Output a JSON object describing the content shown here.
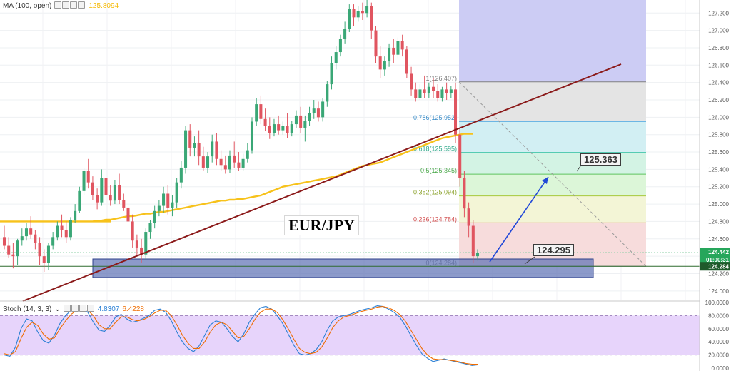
{
  "main_indicator": {
    "name": "MA (100, open)",
    "value": "125.8094"
  },
  "stoch_indicator": {
    "name": "Stoch (14, 3, 3)",
    "k_value": "4.8307",
    "d_value": "6.4228"
  },
  "pair_label": "EUR/JPY",
  "callouts": {
    "target": "125.363",
    "support": "124.295"
  },
  "colors": {
    "bull": "#3aa776",
    "bear": "#e05560",
    "ma": "#f7c21b",
    "trendline": "#8b1a1a",
    "arrow": "#2148d8",
    "stoch_k": "#2a7fd4",
    "stoch_d": "#ef6c00",
    "stoch_band": "#e7d4fb",
    "support_box": "#5b6fb3"
  },
  "chart_data": [
    {
      "type": "candlestick",
      "pair": "EUR/JPY",
      "ylim": [
        123.9,
        127.35
      ],
      "y_ticks": [
        "124.000",
        "124.200",
        "124.400",
        "124.600",
        "124.800",
        "125.000",
        "125.200",
        "125.400",
        "125.600",
        "125.800",
        "126.000",
        "126.200",
        "126.400",
        "126.600",
        "126.800",
        "127.000",
        "127.200"
      ],
      "price_labels": {
        "current": "124.442",
        "countdown": "01:00:31",
        "level": "124.284"
      },
      "horizontal_level": 124.284,
      "fibonacci": {
        "high": 126.407,
        "low": 124.284,
        "levels": [
          {
            "ratio": "1",
            "value": 126.407,
            "label": "1(126.407)"
          },
          {
            "ratio": "0.786",
            "value": 125.952,
            "label": "0.786(125.952)"
          },
          {
            "ratio": "0.618",
            "value": 125.595,
            "label": "0.618(125.595)"
          },
          {
            "ratio": "0.5",
            "value": 125.345,
            "label": "0.5(125.345)"
          },
          {
            "ratio": "0.382",
            "value": 125.094,
            "label": "0.382(125.094)"
          },
          {
            "ratio": "0.236",
            "value": 124.784,
            "label": "0.236(124.784)"
          },
          {
            "ratio": "0",
            "value": 124.284,
            "label": "0(124.284)"
          }
        ]
      },
      "candles": [
        {
          "o": 124.62,
          "h": 124.75,
          "c": 124.52,
          "l": 124.48
        },
        {
          "o": 124.52,
          "h": 124.62,
          "c": 124.42,
          "l": 124.38
        },
        {
          "o": 124.42,
          "h": 124.55,
          "c": 124.4,
          "l": 124.26
        },
        {
          "o": 124.4,
          "h": 124.6,
          "c": 124.58,
          "l": 124.3
        },
        {
          "o": 124.58,
          "h": 124.72,
          "c": 124.63,
          "l": 124.52
        },
        {
          "o": 124.63,
          "h": 124.78,
          "c": 124.72,
          "l": 124.58
        },
        {
          "o": 124.72,
          "h": 124.86,
          "c": 124.65,
          "l": 124.6
        },
        {
          "o": 124.65,
          "h": 124.7,
          "c": 124.55,
          "l": 124.48
        },
        {
          "o": 124.55,
          "h": 124.62,
          "c": 124.4,
          "l": 124.3
        },
        {
          "o": 124.4,
          "h": 124.48,
          "c": 124.32,
          "l": 124.22
        },
        {
          "o": 124.32,
          "h": 124.55,
          "c": 124.52,
          "l": 124.24
        },
        {
          "o": 124.52,
          "h": 124.68,
          "c": 124.62,
          "l": 124.48
        },
        {
          "o": 124.62,
          "h": 124.8,
          "c": 124.75,
          "l": 124.58
        },
        {
          "o": 124.75,
          "h": 124.88,
          "c": 124.7,
          "l": 124.62
        },
        {
          "o": 124.7,
          "h": 124.8,
          "c": 124.62,
          "l": 124.55
        },
        {
          "o": 124.62,
          "h": 124.85,
          "c": 124.82,
          "l": 124.58
        },
        {
          "o": 124.82,
          "h": 125.0,
          "c": 124.92,
          "l": 124.78
        },
        {
          "o": 124.92,
          "h": 125.2,
          "c": 125.15,
          "l": 124.9
        },
        {
          "o": 125.15,
          "h": 125.42,
          "c": 125.38,
          "l": 125.1
        },
        {
          "o": 125.38,
          "h": 125.52,
          "c": 125.25,
          "l": 125.18
        },
        {
          "o": 125.25,
          "h": 125.32,
          "c": 125.1,
          "l": 125.05
        },
        {
          "o": 125.1,
          "h": 125.18,
          "c": 125.02,
          "l": 124.94
        },
        {
          "o": 125.02,
          "h": 125.4,
          "c": 125.3,
          "l": 124.98
        },
        {
          "o": 125.3,
          "h": 125.42,
          "c": 125.1,
          "l": 125.05
        },
        {
          "o": 125.1,
          "h": 125.22,
          "c": 125.04,
          "l": 124.98
        },
        {
          "o": 125.04,
          "h": 125.28,
          "c": 125.22,
          "l": 125.0
        },
        {
          "o": 125.22,
          "h": 125.35,
          "c": 125.05,
          "l": 125.0
        },
        {
          "o": 125.05,
          "h": 125.12,
          "c": 124.96,
          "l": 124.92
        },
        {
          "o": 124.96,
          "h": 125.0,
          "c": 124.8,
          "l": 124.7
        },
        {
          "o": 124.8,
          "h": 124.88,
          "c": 124.58,
          "l": 124.5
        },
        {
          "o": 124.58,
          "h": 124.65,
          "c": 124.5,
          "l": 124.4
        },
        {
          "o": 124.5,
          "h": 124.6,
          "c": 124.42,
          "l": 124.32
        },
        {
          "o": 124.42,
          "h": 124.72,
          "c": 124.68,
          "l": 124.36
        },
        {
          "o": 124.68,
          "h": 124.82,
          "c": 124.78,
          "l": 124.6
        },
        {
          "o": 124.78,
          "h": 124.98,
          "c": 124.92,
          "l": 124.72
        },
        {
          "o": 124.92,
          "h": 125.05,
          "c": 124.98,
          "l": 124.86
        },
        {
          "o": 124.98,
          "h": 125.2,
          "c": 125.12,
          "l": 124.9
        },
        {
          "o": 125.12,
          "h": 125.22,
          "c": 124.96,
          "l": 124.88
        },
        {
          "o": 124.96,
          "h": 125.1,
          "c": 125.02,
          "l": 124.86
        },
        {
          "o": 125.02,
          "h": 125.3,
          "c": 125.25,
          "l": 124.96
        },
        {
          "o": 125.25,
          "h": 125.5,
          "c": 125.42,
          "l": 125.18
        },
        {
          "o": 125.42,
          "h": 125.9,
          "c": 125.85,
          "l": 125.35
        },
        {
          "o": 125.85,
          "h": 125.92,
          "c": 125.65,
          "l": 125.55
        },
        {
          "o": 125.65,
          "h": 125.78,
          "c": 125.7,
          "l": 125.55
        },
        {
          "o": 125.7,
          "h": 125.85,
          "c": 125.55,
          "l": 125.45
        },
        {
          "o": 125.55,
          "h": 125.66,
          "c": 125.42,
          "l": 125.38
        },
        {
          "o": 125.42,
          "h": 125.6,
          "c": 125.55,
          "l": 125.36
        },
        {
          "o": 125.55,
          "h": 125.8,
          "c": 125.72,
          "l": 125.48
        },
        {
          "o": 125.72,
          "h": 125.82,
          "c": 125.52,
          "l": 125.45
        },
        {
          "o": 125.52,
          "h": 125.62,
          "c": 125.45,
          "l": 125.38
        },
        {
          "o": 125.45,
          "h": 125.56,
          "c": 125.4,
          "l": 125.35
        },
        {
          "o": 125.4,
          "h": 125.62,
          "c": 125.56,
          "l": 125.36
        },
        {
          "o": 125.56,
          "h": 125.72,
          "c": 125.48,
          "l": 125.42
        },
        {
          "o": 125.48,
          "h": 125.6,
          "c": 125.42,
          "l": 125.38
        },
        {
          "o": 125.42,
          "h": 125.58,
          "c": 125.52,
          "l": 125.38
        },
        {
          "o": 125.52,
          "h": 125.7,
          "c": 125.62,
          "l": 125.48
        },
        {
          "o": 125.62,
          "h": 126.0,
          "c": 125.95,
          "l": 125.58
        },
        {
          "o": 125.95,
          "h": 126.22,
          "c": 126.15,
          "l": 125.9
        },
        {
          "o": 126.15,
          "h": 126.25,
          "c": 125.98,
          "l": 125.92
        },
        {
          "o": 125.98,
          "h": 126.1,
          "c": 125.9,
          "l": 125.84
        },
        {
          "o": 125.9,
          "h": 126.0,
          "c": 125.82,
          "l": 125.75
        },
        {
          "o": 125.82,
          "h": 125.98,
          "c": 125.92,
          "l": 125.78
        },
        {
          "o": 125.92,
          "h": 126.02,
          "c": 125.85,
          "l": 125.8
        },
        {
          "o": 125.85,
          "h": 125.95,
          "c": 125.9,
          "l": 125.8
        },
        {
          "o": 125.9,
          "h": 126.05,
          "c": 125.82,
          "l": 125.76
        },
        {
          "o": 125.82,
          "h": 125.96,
          "c": 125.92,
          "l": 125.78
        },
        {
          "o": 125.92,
          "h": 126.08,
          "c": 126.02,
          "l": 125.88
        },
        {
          "o": 126.02,
          "h": 126.12,
          "c": 125.88,
          "l": 125.82
        },
        {
          "o": 125.88,
          "h": 126.02,
          "c": 125.96,
          "l": 125.72
        },
        {
          "o": 125.96,
          "h": 126.12,
          "c": 126.05,
          "l": 125.9
        },
        {
          "o": 126.05,
          "h": 126.2,
          "c": 126.1,
          "l": 125.98
        },
        {
          "o": 126.1,
          "h": 126.18,
          "c": 126.0,
          "l": 125.95
        },
        {
          "o": 126.0,
          "h": 126.22,
          "c": 126.18,
          "l": 125.95
        },
        {
          "o": 126.18,
          "h": 126.42,
          "c": 126.38,
          "l": 126.12
        },
        {
          "o": 126.38,
          "h": 126.7,
          "c": 126.62,
          "l": 126.32
        },
        {
          "o": 126.62,
          "h": 126.82,
          "c": 126.75,
          "l": 126.55
        },
        {
          "o": 126.75,
          "h": 126.95,
          "c": 126.9,
          "l": 126.7
        },
        {
          "o": 126.9,
          "h": 127.1,
          "c": 127.02,
          "l": 126.85
        },
        {
          "o": 127.02,
          "h": 127.3,
          "c": 127.25,
          "l": 126.98
        },
        {
          "o": 127.25,
          "h": 127.3,
          "c": 127.15,
          "l": 127.05
        },
        {
          "o": 127.15,
          "h": 127.28,
          "c": 127.22,
          "l": 127.1
        },
        {
          "o": 127.22,
          "h": 127.32,
          "c": 127.2,
          "l": 127.12
        },
        {
          "o": 127.2,
          "h": 127.35,
          "c": 127.28,
          "l": 127.15
        },
        {
          "o": 127.28,
          "h": 127.32,
          "c": 127.0,
          "l": 126.9
        },
        {
          "o": 127.0,
          "h": 127.05,
          "c": 126.7,
          "l": 126.62
        },
        {
          "o": 126.7,
          "h": 126.82,
          "c": 126.55,
          "l": 126.45
        },
        {
          "o": 126.55,
          "h": 126.7,
          "c": 126.65,
          "l": 126.48
        },
        {
          "o": 126.65,
          "h": 126.85,
          "c": 126.8,
          "l": 126.58
        },
        {
          "o": 126.8,
          "h": 126.9,
          "c": 126.72,
          "l": 126.62
        },
        {
          "o": 126.72,
          "h": 126.92,
          "c": 126.88,
          "l": 126.68
        },
        {
          "o": 126.88,
          "h": 126.95,
          "c": 126.78,
          "l": 126.7
        },
        {
          "o": 126.78,
          "h": 126.82,
          "c": 126.5,
          "l": 126.45
        },
        {
          "o": 126.5,
          "h": 126.58,
          "c": 126.32,
          "l": 126.25
        },
        {
          "o": 126.32,
          "h": 126.4,
          "c": 126.22,
          "l": 126.18
        },
        {
          "o": 126.22,
          "h": 126.38,
          "c": 126.32,
          "l": 126.2
        },
        {
          "o": 126.32,
          "h": 126.48,
          "c": 126.28,
          "l": 126.22
        },
        {
          "o": 126.28,
          "h": 126.4,
          "c": 126.35,
          "l": 126.22
        },
        {
          "o": 126.35,
          "h": 126.45,
          "c": 126.3,
          "l": 126.22
        },
        {
          "o": 126.3,
          "h": 126.38,
          "c": 126.22,
          "l": 126.18
        },
        {
          "o": 126.22,
          "h": 126.35,
          "c": 126.32,
          "l": 126.18
        },
        {
          "o": 126.32,
          "h": 126.4,
          "c": 126.28,
          "l": 126.2
        },
        {
          "o": 126.28,
          "h": 126.36,
          "c": 126.32,
          "l": 126.22
        },
        {
          "o": 126.32,
          "h": 126.4,
          "c": 125.8,
          "l": 125.7
        },
        {
          "o": 125.8,
          "h": 125.88,
          "c": 125.3,
          "l": 125.2
        },
        {
          "o": 125.3,
          "h": 125.38,
          "c": 124.95,
          "l": 124.85
        },
        {
          "o": 124.95,
          "h": 125.02,
          "c": 124.75,
          "l": 124.62
        },
        {
          "o": 124.75,
          "h": 124.82,
          "c": 124.4,
          "l": 124.32
        },
        {
          "o": 124.4,
          "h": 124.48,
          "c": 124.44,
          "l": 124.35
        }
      ],
      "ma_100": [
        124.8,
        124.81,
        124.81,
        124.82,
        124.82,
        124.83,
        124.84,
        124.85,
        124.86,
        124.86,
        124.87,
        124.88,
        124.89,
        124.89,
        124.9,
        124.91,
        124.91,
        124.92,
        124.93,
        124.94,
        124.95,
        124.96,
        124.97,
        124.98,
        124.99,
        125.0,
        125.01,
        125.02,
        125.03,
        125.04,
        125.04,
        125.05,
        125.05,
        125.06,
        125.06,
        125.07,
        125.08,
        125.09,
        125.1,
        125.12,
        125.14,
        125.16,
        125.18,
        125.2,
        125.21,
        125.22,
        125.23,
        125.24,
        125.25,
        125.26,
        125.27,
        125.28,
        125.29,
        125.3,
        125.31,
        125.32,
        125.34,
        125.36,
        125.38,
        125.4,
        125.42,
        125.44,
        125.45,
        125.46,
        125.47,
        125.48,
        125.5,
        125.52,
        125.54,
        125.56,
        125.58,
        125.6,
        125.62,
        125.64,
        125.66,
        125.68,
        125.7,
        125.72,
        125.74,
        125.76,
        125.77,
        125.78,
        125.79,
        125.8,
        125.81,
        125.81,
        125.81
      ],
      "ma_start_index": 20
    },
    {
      "type": "line",
      "title": "Stoch (14, 3, 3)",
      "ylim": [
        0,
        100
      ],
      "y_ticks": [
        "0.0000",
        "20.0000",
        "40.0000",
        "60.0000",
        "80.0000",
        "100.0000"
      ],
      "band": [
        20,
        80
      ],
      "series": [
        {
          "name": "%K",
          "values": [
            20,
            18,
            32,
            60,
            75,
            72,
            55,
            42,
            38,
            50,
            68,
            80,
            88,
            92,
            90,
            85,
            70,
            58,
            56,
            65,
            78,
            82,
            75,
            70,
            72,
            76,
            80,
            88,
            90,
            85,
            72,
            55,
            40,
            30,
            25,
            34,
            50,
            66,
            72,
            70,
            60,
            48,
            40,
            52,
            70,
            82,
            92,
            94,
            90,
            80,
            68,
            52,
            35,
            22,
            20,
            22,
            28,
            40,
            58,
            72,
            78,
            80,
            82,
            85,
            88,
            90,
            92,
            95,
            94,
            90,
            85,
            78,
            65,
            50,
            35,
            22,
            15,
            10,
            12,
            14,
            12,
            10,
            8,
            6,
            4,
            5
          ]
        },
        {
          "name": "%D",
          "values": [
            22,
            20,
            25,
            45,
            62,
            70,
            65,
            52,
            44,
            46,
            60,
            72,
            82,
            88,
            90,
            88,
            80,
            66,
            60,
            60,
            70,
            78,
            78,
            74,
            72,
            74,
            78,
            84,
            88,
            88,
            80,
            66,
            50,
            38,
            30,
            30,
            40,
            55,
            66,
            70,
            66,
            56,
            46,
            48,
            60,
            74,
            85,
            90,
            90,
            85,
            74,
            60,
            44,
            30,
            24,
            22,
            24,
            32,
            46,
            62,
            72,
            78,
            80,
            83,
            86,
            88,
            90,
            93,
            94,
            92,
            88,
            82,
            72,
            58,
            44,
            30,
            20,
            14,
            13,
            13,
            12,
            11,
            9,
            7,
            6,
            6
          ]
        }
      ]
    }
  ]
}
